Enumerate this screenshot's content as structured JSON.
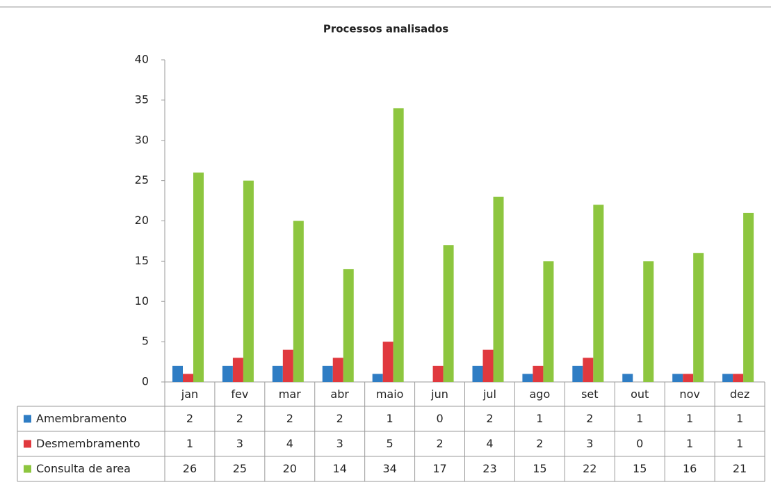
{
  "chart_data": {
    "type": "bar",
    "title": "Processos analisados",
    "categories": [
      "jan",
      "fev",
      "mar",
      "abr",
      "maio",
      "jun",
      "jul",
      "ago",
      "set",
      "out",
      "nov",
      "dez"
    ],
    "series": [
      {
        "name": "Amembramento",
        "color": "#2f7dc4",
        "values": [
          2,
          2,
          2,
          2,
          1,
          0,
          2,
          1,
          2,
          1,
          1,
          1
        ]
      },
      {
        "name": "Desmembramento",
        "color": "#e0393e",
        "values": [
          1,
          3,
          4,
          3,
          5,
          2,
          4,
          2,
          3,
          0,
          1,
          1
        ]
      },
      {
        "name": "Consulta de area",
        "color": "#8dc63f",
        "values": [
          26,
          25,
          20,
          14,
          34,
          17,
          23,
          15,
          22,
          15,
          16,
          21
        ]
      }
    ],
    "ylim": [
      0,
      40
    ],
    "yticks": [
      0,
      5,
      10,
      15,
      20,
      25,
      30,
      35,
      40
    ],
    "grid": false
  }
}
